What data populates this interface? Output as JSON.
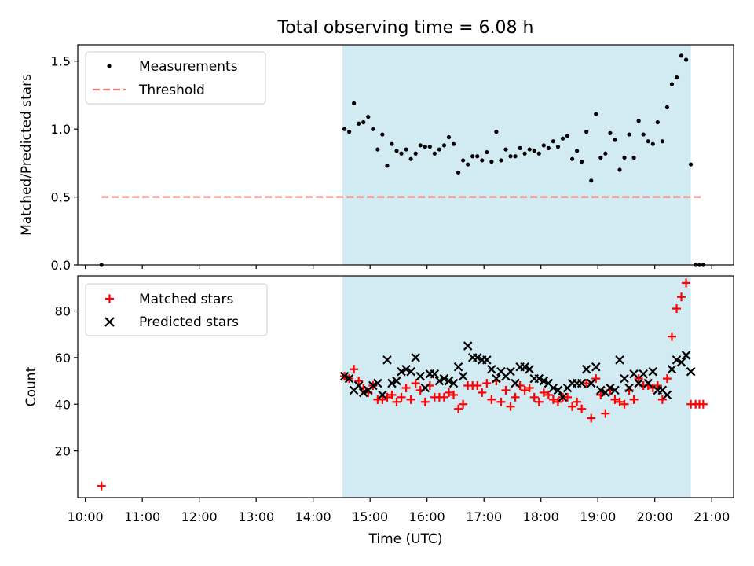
{
  "figure_title": "Total observing time = 6.08 h",
  "chart_data": [
    {
      "type": "scatter",
      "title": "Total observing time = 6.08 h",
      "xlabel": "",
      "ylabel": "Matched/Predicted stars",
      "xlim": [
        "09:52",
        "21:23"
      ],
      "ylim": [
        0,
        1.62
      ],
      "yticks": [
        0.0,
        0.5,
        1.0,
        1.5
      ],
      "ytick_labels": [
        "0.0",
        "0.5",
        "1.0",
        "1.5"
      ],
      "x_tick_labels_shown": false,
      "legend_position": "top-left",
      "highlight_span": [
        "14:31",
        "20:38"
      ],
      "colors": {
        "measurements": "#000000",
        "threshold": "#f08080",
        "span": "#add8e6"
      },
      "series": [
        {
          "name": "Measurements",
          "marker": "dot",
          "points": [
            [
              "10:17",
              0.0
            ],
            [
              "14:33",
              1.0
            ],
            [
              "14:38",
              0.98
            ],
            [
              "14:43",
              1.19
            ],
            [
              "14:48",
              1.04
            ],
            [
              "14:53",
              1.05
            ],
            [
              "14:58",
              1.09
            ],
            [
              "15:03",
              1.0
            ],
            [
              "15:08",
              0.85
            ],
            [
              "15:13",
              0.96
            ],
            [
              "15:18",
              0.73
            ],
            [
              "15:23",
              0.89
            ],
            [
              "15:28",
              0.84
            ],
            [
              "15:33",
              0.82
            ],
            [
              "15:38",
              0.85
            ],
            [
              "15:43",
              0.78
            ],
            [
              "15:48",
              0.82
            ],
            [
              "15:53",
              0.88
            ],
            [
              "15:58",
              0.87
            ],
            [
              "16:03",
              0.87
            ],
            [
              "16:08",
              0.82
            ],
            [
              "16:13",
              0.85
            ],
            [
              "16:18",
              0.88
            ],
            [
              "16:23",
              0.94
            ],
            [
              "16:28",
              0.89
            ],
            [
              "16:33",
              0.68
            ],
            [
              "16:38",
              0.77
            ],
            [
              "16:43",
              0.74
            ],
            [
              "16:48",
              0.8
            ],
            [
              "16:53",
              0.8
            ],
            [
              "16:58",
              0.77
            ],
            [
              "17:03",
              0.83
            ],
            [
              "17:08",
              0.76
            ],
            [
              "17:13",
              0.98
            ],
            [
              "17:18",
              0.77
            ],
            [
              "17:23",
              0.85
            ],
            [
              "17:28",
              0.8
            ],
            [
              "17:33",
              0.8
            ],
            [
              "17:38",
              0.86
            ],
            [
              "17:43",
              0.82
            ],
            [
              "17:48",
              0.85
            ],
            [
              "17:53",
              0.84
            ],
            [
              "17:58",
              0.82
            ],
            [
              "18:03",
              0.88
            ],
            [
              "18:08",
              0.86
            ],
            [
              "18:13",
              0.91
            ],
            [
              "18:18",
              0.87
            ],
            [
              "18:23",
              0.93
            ],
            [
              "18:28",
              0.95
            ],
            [
              "18:33",
              0.78
            ],
            [
              "18:38",
              0.84
            ],
            [
              "18:43",
              0.76
            ],
            [
              "18:48",
              0.98
            ],
            [
              "18:53",
              0.62
            ],
            [
              "18:58",
              1.11
            ],
            [
              "19:03",
              0.79
            ],
            [
              "19:08",
              0.82
            ],
            [
              "19:13",
              0.97
            ],
            [
              "19:18",
              0.92
            ],
            [
              "19:23",
              0.7
            ],
            [
              "19:28",
              0.79
            ],
            [
              "19:33",
              0.96
            ],
            [
              "19:38",
              0.79
            ],
            [
              "19:43",
              1.06
            ],
            [
              "19:48",
              0.96
            ],
            [
              "19:53",
              0.91
            ],
            [
              "19:58",
              0.89
            ],
            [
              "20:03",
              1.05
            ],
            [
              "20:08",
              0.91
            ],
            [
              "20:13",
              1.16
            ],
            [
              "20:18",
              1.33
            ],
            [
              "20:23",
              1.38
            ],
            [
              "20:28",
              1.54
            ],
            [
              "20:33",
              1.51
            ],
            [
              "20:38",
              0.74
            ],
            [
              "20:43",
              0.0
            ],
            [
              "20:47",
              0.0
            ],
            [
              "20:51",
              0.0
            ]
          ]
        },
        {
          "name": "Threshold",
          "style": "dashed",
          "points": [
            [
              "10:17",
              0.5
            ],
            [
              "20:51",
              0.5
            ]
          ]
        }
      ]
    },
    {
      "type": "scatter",
      "xlabel": "Time (UTC)",
      "ylabel": "Count",
      "xlim": [
        "09:52",
        "21:23"
      ],
      "ylim": [
        0,
        95
      ],
      "yticks": [
        20,
        40,
        60,
        80
      ],
      "ytick_labels": [
        "20",
        "40",
        "60",
        "80"
      ],
      "xtick_labels": [
        "10:00",
        "11:00",
        "12:00",
        "13:00",
        "14:00",
        "15:00",
        "16:00",
        "17:00",
        "18:00",
        "19:00",
        "20:00",
        "21:00"
      ],
      "legend_position": "top-left",
      "highlight_span": [
        "14:31",
        "20:38"
      ],
      "colors": {
        "matched": "#ff0000",
        "predicted": "#000000",
        "span": "#add8e6"
      },
      "series": [
        {
          "name": "Matched stars",
          "marker": "plus",
          "points": [
            [
              "10:17",
              5
            ],
            [
              "14:33",
              52
            ],
            [
              "14:38",
              51
            ],
            [
              "14:43",
              55
            ],
            [
              "14:48",
              50
            ],
            [
              "14:53",
              47
            ],
            [
              "14:58",
              45
            ],
            [
              "15:03",
              48
            ],
            [
              "15:08",
              42
            ],
            [
              "15:13",
              42
            ],
            [
              "15:18",
              43
            ],
            [
              "15:23",
              44
            ],
            [
              "15:28",
              41
            ],
            [
              "15:33",
              43
            ],
            [
              "15:38",
              47
            ],
            [
              "15:43",
              42
            ],
            [
              "15:48",
              49
            ],
            [
              "15:53",
              46
            ],
            [
              "15:58",
              41
            ],
            [
              "16:03",
              48
            ],
            [
              "16:08",
              43
            ],
            [
              "16:13",
              43
            ],
            [
              "16:18",
              43
            ],
            [
              "16:23",
              45
            ],
            [
              "16:28",
              44
            ],
            [
              "16:33",
              38
            ],
            [
              "16:38",
              40
            ],
            [
              "16:43",
              48
            ],
            [
              "16:48",
              48
            ],
            [
              "16:53",
              48
            ],
            [
              "16:58",
              45
            ],
            [
              "17:03",
              49
            ],
            [
              "17:08",
              42
            ],
            [
              "17:13",
              50
            ],
            [
              "17:18",
              41
            ],
            [
              "17:23",
              46
            ],
            [
              "17:28",
              39
            ],
            [
              "17:33",
              43
            ],
            [
              "17:38",
              48
            ],
            [
              "17:43",
              46
            ],
            [
              "17:48",
              47
            ],
            [
              "17:53",
              43
            ],
            [
              "17:58",
              41
            ],
            [
              "18:03",
              45
            ],
            [
              "18:08",
              44
            ],
            [
              "18:13",
              42
            ],
            [
              "18:18",
              41
            ],
            [
              "18:23",
              43
            ],
            [
              "18:28",
              43
            ],
            [
              "18:33",
              39
            ],
            [
              "18:38",
              41
            ],
            [
              "18:43",
              38
            ],
            [
              "18:48",
              49
            ],
            [
              "18:53",
              34
            ],
            [
              "18:58",
              51
            ],
            [
              "19:03",
              44
            ],
            [
              "19:08",
              36
            ],
            [
              "19:13",
              46
            ],
            [
              "19:18",
              42
            ],
            [
              "19:23",
              41
            ],
            [
              "19:28",
              40
            ],
            [
              "19:33",
              46
            ],
            [
              "19:38",
              42
            ],
            [
              "19:43",
              51
            ],
            [
              "19:48",
              48
            ],
            [
              "19:53",
              48
            ],
            [
              "19:58",
              47
            ],
            [
              "20:03",
              48
            ],
            [
              "20:08",
              42
            ],
            [
              "20:13",
              51
            ],
            [
              "20:18",
              69
            ],
            [
              "20:23",
              81
            ],
            [
              "20:28",
              86
            ],
            [
              "20:33",
              92
            ],
            [
              "20:38",
              40
            ],
            [
              "20:43",
              40
            ],
            [
              "20:47",
              40
            ],
            [
              "20:51",
              40
            ]
          ]
        },
        {
          "name": "Predicted stars",
          "marker": "x",
          "points": [
            [
              "14:33",
              52
            ],
            [
              "14:38",
              51
            ],
            [
              "14:43",
              46
            ],
            [
              "14:48",
              48
            ],
            [
              "14:53",
              45
            ],
            [
              "14:58",
              46
            ],
            [
              "15:03",
              48
            ],
            [
              "15:08",
              49
            ],
            [
              "15:13",
              44
            ],
            [
              "15:18",
              59
            ],
            [
              "15:23",
              49
            ],
            [
              "15:28",
              50
            ],
            [
              "15:33",
              54
            ],
            [
              "15:38",
              55
            ],
            [
              "15:43",
              54
            ],
            [
              "15:48",
              60
            ],
            [
              "15:53",
              52
            ],
            [
              "15:58",
              47
            ],
            [
              "16:03",
              53
            ],
            [
              "16:08",
              53
            ],
            [
              "16:13",
              50
            ],
            [
              "16:18",
              51
            ],
            [
              "16:23",
              50
            ],
            [
              "16:28",
              49
            ],
            [
              "16:33",
              56
            ],
            [
              "16:38",
              52
            ],
            [
              "16:43",
              65
            ],
            [
              "16:48",
              60
            ],
            [
              "16:53",
              60
            ],
            [
              "16:58",
              59
            ],
            [
              "17:03",
              59
            ],
            [
              "17:08",
              55
            ],
            [
              "17:13",
              51
            ],
            [
              "17:18",
              54
            ],
            [
              "17:23",
              52
            ],
            [
              "17:28",
              54
            ],
            [
              "17:33",
              49
            ],
            [
              "17:38",
              56
            ],
            [
              "17:43",
              56
            ],
            [
              "17:48",
              55
            ],
            [
              "17:53",
              51
            ],
            [
              "17:58",
              51
            ],
            [
              "18:03",
              50
            ],
            [
              "18:08",
              49
            ],
            [
              "18:13",
              47
            ],
            [
              "18:18",
              46
            ],
            [
              "18:23",
              43
            ],
            [
              "18:28",
              47
            ],
            [
              "18:33",
              49
            ],
            [
              "18:38",
              49
            ],
            [
              "18:43",
              49
            ],
            [
              "18:48",
              55
            ],
            [
              "18:53",
              49
            ],
            [
              "18:58",
              56
            ],
            [
              "19:03",
              46
            ],
            [
              "19:08",
              45
            ],
            [
              "19:13",
              47
            ],
            [
              "19:18",
              46
            ],
            [
              "19:23",
              59
            ],
            [
              "19:28",
              51
            ],
            [
              "19:33",
              47
            ],
            [
              "19:38",
              53
            ],
            [
              "19:43",
              49
            ],
            [
              "19:48",
              53
            ],
            [
              "19:53",
              49
            ],
            [
              "19:58",
              54
            ],
            [
              "20:03",
              46
            ],
            [
              "20:08",
              46
            ],
            [
              "20:13",
              44
            ],
            [
              "20:18",
              55
            ],
            [
              "20:23",
              59
            ],
            [
              "20:28",
              58
            ],
            [
              "20:33",
              61
            ],
            [
              "20:38",
              54
            ]
          ]
        }
      ]
    }
  ]
}
